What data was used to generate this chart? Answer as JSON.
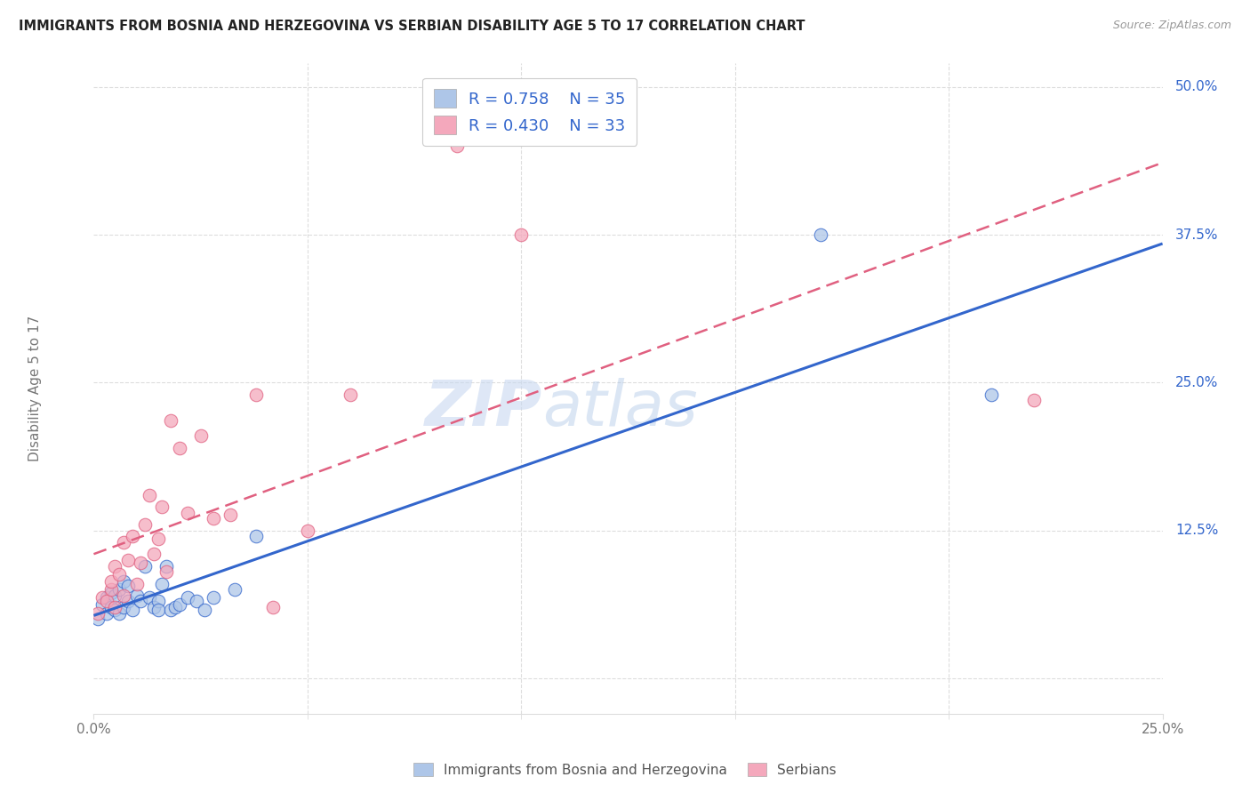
{
  "title": "IMMIGRANTS FROM BOSNIA AND HERZEGOVINA VS SERBIAN DISABILITY AGE 5 TO 17 CORRELATION CHART",
  "source": "Source: ZipAtlas.com",
  "ylabel": "Disability Age 5 to 17",
  "xlim": [
    0.0,
    0.25
  ],
  "ylim": [
    -0.03,
    0.52
  ],
  "legend_R1": "R = 0.758",
  "legend_N1": "N = 35",
  "legend_R2": "R = 0.430",
  "legend_N2": "N = 33",
  "color_blue": "#aec6e8",
  "color_pink": "#f4a8bc",
  "line_color_blue": "#3366cc",
  "line_color_pink": "#e06080",
  "background_color": "#ffffff",
  "blue_scatter_x": [
    0.001,
    0.002,
    0.003,
    0.003,
    0.004,
    0.004,
    0.005,
    0.005,
    0.006,
    0.006,
    0.007,
    0.007,
    0.008,
    0.008,
    0.009,
    0.01,
    0.011,
    0.012,
    0.013,
    0.014,
    0.015,
    0.015,
    0.016,
    0.017,
    0.018,
    0.019,
    0.02,
    0.022,
    0.024,
    0.026,
    0.028,
    0.033,
    0.038,
    0.17,
    0.21
  ],
  "blue_scatter_y": [
    0.05,
    0.062,
    0.055,
    0.068,
    0.06,
    0.072,
    0.058,
    0.07,
    0.055,
    0.075,
    0.06,
    0.082,
    0.065,
    0.078,
    0.058,
    0.07,
    0.065,
    0.095,
    0.068,
    0.06,
    0.065,
    0.058,
    0.08,
    0.095,
    0.058,
    0.06,
    0.062,
    0.068,
    0.065,
    0.058,
    0.068,
    0.075,
    0.12,
    0.375,
    0.24
  ],
  "pink_scatter_x": [
    0.001,
    0.002,
    0.003,
    0.004,
    0.004,
    0.005,
    0.005,
    0.006,
    0.007,
    0.007,
    0.008,
    0.009,
    0.01,
    0.011,
    0.012,
    0.013,
    0.014,
    0.015,
    0.016,
    0.017,
    0.018,
    0.02,
    0.022,
    0.025,
    0.028,
    0.032,
    0.038,
    0.042,
    0.05,
    0.06,
    0.085,
    0.1,
    0.22
  ],
  "pink_scatter_y": [
    0.055,
    0.068,
    0.065,
    0.075,
    0.082,
    0.06,
    0.095,
    0.088,
    0.07,
    0.115,
    0.1,
    0.12,
    0.08,
    0.098,
    0.13,
    0.155,
    0.105,
    0.118,
    0.145,
    0.09,
    0.218,
    0.195,
    0.14,
    0.205,
    0.135,
    0.138,
    0.24,
    0.06,
    0.125,
    0.24,
    0.45,
    0.375,
    0.235
  ],
  "grid_color": "#dddddd",
  "tick_color": "#777777",
  "right_label_color": "#3366cc"
}
